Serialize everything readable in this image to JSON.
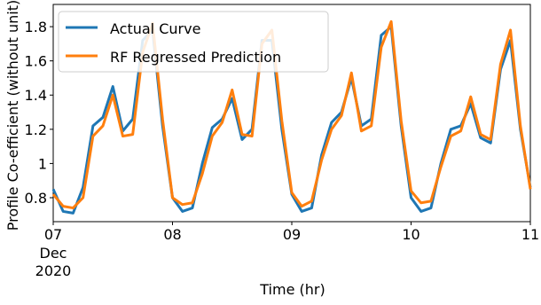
{
  "chart_data": {
    "type": "line",
    "xlabel": "Time (hr)",
    "ylabel": "Profile Co-efficient (without unit)",
    "x": [
      0,
      2,
      4,
      6,
      8,
      10,
      12,
      14,
      16,
      18,
      20,
      22,
      24,
      26,
      28,
      30,
      32,
      34,
      36,
      38,
      40,
      42,
      44,
      46,
      48,
      50,
      52,
      54,
      56,
      58,
      60,
      62,
      64,
      66,
      68,
      70,
      72,
      74,
      76,
      78,
      80,
      82,
      84,
      86,
      88,
      90,
      92,
      94,
      96
    ],
    "series": [
      {
        "name": "Actual Curve",
        "color": "#1f77b4",
        "values": [
          0.85,
          0.72,
          0.71,
          0.86,
          1.22,
          1.27,
          1.45,
          1.19,
          1.26,
          1.72,
          1.78,
          1.22,
          0.8,
          0.72,
          0.74,
          1.0,
          1.21,
          1.26,
          1.38,
          1.14,
          1.2,
          1.72,
          1.72,
          1.2,
          0.82,
          0.72,
          0.74,
          1.05,
          1.24,
          1.3,
          1.5,
          1.22,
          1.26,
          1.75,
          1.8,
          1.22,
          0.8,
          0.72,
          0.74,
          1.0,
          1.2,
          1.22,
          1.35,
          1.15,
          1.12,
          1.55,
          1.72,
          1.2,
          0.86
        ]
      },
      {
        "name": "RF Regressed Prediction",
        "color": "#ff7f0e",
        "values": [
          0.82,
          0.75,
          0.74,
          0.8,
          1.16,
          1.22,
          1.4,
          1.16,
          1.17,
          1.65,
          1.82,
          1.26,
          0.8,
          0.76,
          0.77,
          0.94,
          1.16,
          1.24,
          1.43,
          1.17,
          1.16,
          1.7,
          1.78,
          1.25,
          0.83,
          0.75,
          0.78,
          1.02,
          1.2,
          1.28,
          1.53,
          1.19,
          1.22,
          1.68,
          1.83,
          1.25,
          0.84,
          0.77,
          0.78,
          0.98,
          1.16,
          1.19,
          1.39,
          1.17,
          1.14,
          1.58,
          1.78,
          1.22,
          0.85
        ]
      }
    ],
    "xlim": [
      0,
      96
    ],
    "ylim": [
      0.66,
      1.93
    ],
    "xticks": [
      {
        "value": 0,
        "label": "07"
      },
      {
        "value": 24,
        "label": "08"
      },
      {
        "value": 48,
        "label": "09"
      },
      {
        "value": 72,
        "label": "10"
      },
      {
        "value": 96,
        "label": "11"
      }
    ],
    "xtick_date_labels": [
      "Dec",
      "2020"
    ],
    "yticks": [
      0.8,
      1.0,
      1.2,
      1.4,
      1.6,
      1.8
    ],
    "legend": "upper left"
  }
}
